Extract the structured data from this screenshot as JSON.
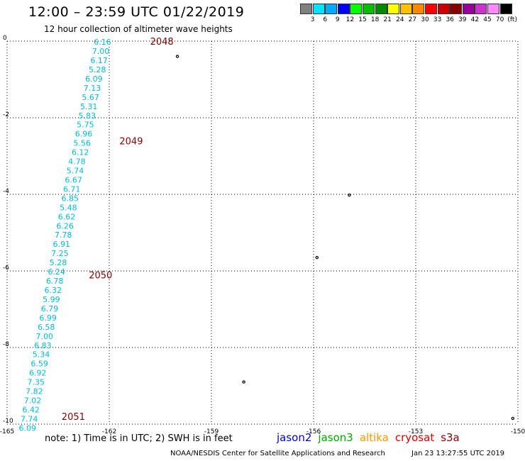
{
  "header": {
    "title": "12:00 – 23:59 UTC 01/22/2019",
    "subtitle": "12 hour collection of altimeter wave heights"
  },
  "legend_scale": {
    "colors": [
      "#808080",
      "#00e5ff",
      "#00aaff",
      "#0000ff",
      "#00ff00",
      "#00c000",
      "#008800",
      "#ffff00",
      "#ffc000",
      "#ff8800",
      "#ff0000",
      "#cc0000",
      "#880000",
      "#990099",
      "#cc33cc",
      "#ff88ff",
      "#000000"
    ],
    "labels": [
      "3",
      "6",
      "9",
      "12",
      "15",
      "18",
      "21",
      "24",
      "27",
      "30",
      "33",
      "36",
      "39",
      "42",
      "45",
      "70",
      "(ft)"
    ]
  },
  "map": {
    "lon_ticks": [
      "-165",
      "-162",
      "-159",
      "-156",
      "-153",
      "-150"
    ],
    "lat_ticks": [
      "0",
      "-2",
      "-4",
      "-6",
      "-8",
      "-10"
    ],
    "lon_range": [
      -165,
      -150
    ],
    "lat_range": [
      -10,
      0
    ],
    "grid": "dotted",
    "track_color": "#00bbdd",
    "time_label_color": "#880000",
    "wave_heights": [
      {
        "lat": -0.02,
        "lon": -162.2,
        "text": "6.16"
      },
      {
        "lat": -0.26,
        "lon": -162.25,
        "text": "7.00"
      },
      {
        "lat": -0.5,
        "lon": -162.3,
        "text": "6.17"
      },
      {
        "lat": -0.74,
        "lon": -162.35,
        "text": "5.28"
      },
      {
        "lat": -0.98,
        "lon": -162.45,
        "text": "6.09"
      },
      {
        "lat": -1.22,
        "lon": -162.5,
        "text": "7.13"
      },
      {
        "lat": -1.46,
        "lon": -162.55,
        "text": "5.67"
      },
      {
        "lat": -1.7,
        "lon": -162.6,
        "text": "5.31"
      },
      {
        "lat": -1.94,
        "lon": -162.65,
        "text": "5.83"
      },
      {
        "lat": -2.18,
        "lon": -162.7,
        "text": "5.75"
      },
      {
        "lat": -2.42,
        "lon": -162.75,
        "text": "6.96"
      },
      {
        "lat": -2.66,
        "lon": -162.8,
        "text": "5.56"
      },
      {
        "lat": -2.9,
        "lon": -162.85,
        "text": "6.12"
      },
      {
        "lat": -3.14,
        "lon": -162.95,
        "text": "4.78"
      },
      {
        "lat": -3.38,
        "lon": -163.0,
        "text": "5.74"
      },
      {
        "lat": -3.62,
        "lon": -163.05,
        "text": "6.67"
      },
      {
        "lat": -3.86,
        "lon": -163.1,
        "text": "6.71"
      },
      {
        "lat": -4.1,
        "lon": -163.15,
        "text": "6.85"
      },
      {
        "lat": -4.34,
        "lon": -163.2,
        "text": "5.48"
      },
      {
        "lat": -4.58,
        "lon": -163.25,
        "text": "6.62"
      },
      {
        "lat": -4.82,
        "lon": -163.3,
        "text": "6.26"
      },
      {
        "lat": -5.06,
        "lon": -163.35,
        "text": "7.78"
      },
      {
        "lat": -5.3,
        "lon": -163.4,
        "text": "6.91"
      },
      {
        "lat": -5.54,
        "lon": -163.45,
        "text": "7.25"
      },
      {
        "lat": -5.78,
        "lon": -163.5,
        "text": "5.28"
      },
      {
        "lat": -6.02,
        "lon": -163.55,
        "text": "6.24"
      },
      {
        "lat": -6.26,
        "lon": -163.6,
        "text": "6.78"
      },
      {
        "lat": -6.5,
        "lon": -163.65,
        "text": "6.32"
      },
      {
        "lat": -6.74,
        "lon": -163.7,
        "text": "5.99"
      },
      {
        "lat": -6.98,
        "lon": -163.75,
        "text": "6.79"
      },
      {
        "lat": -7.22,
        "lon": -163.8,
        "text": "6.99"
      },
      {
        "lat": -7.46,
        "lon": -163.85,
        "text": "6.58"
      },
      {
        "lat": -7.7,
        "lon": -163.9,
        "text": "7.00"
      },
      {
        "lat": -7.94,
        "lon": -163.95,
        "text": "6.83"
      },
      {
        "lat": -8.18,
        "lon": -164.0,
        "text": "5.34"
      },
      {
        "lat": -8.42,
        "lon": -164.05,
        "text": "6.59"
      },
      {
        "lat": -8.66,
        "lon": -164.1,
        "text": "6.92"
      },
      {
        "lat": -8.9,
        "lon": -164.15,
        "text": "7.35"
      },
      {
        "lat": -9.14,
        "lon": -164.2,
        "text": "7.82"
      },
      {
        "lat": -9.38,
        "lon": -164.25,
        "text": "7.02"
      },
      {
        "lat": -9.62,
        "lon": -164.3,
        "text": "6.42"
      },
      {
        "lat": -9.86,
        "lon": -164.35,
        "text": "7.74"
      },
      {
        "lat": -10.1,
        "lon": -164.4,
        "text": "6.09"
      }
    ],
    "time_labels": [
      {
        "lat": 0.0,
        "lon": -160.8,
        "text": "2048"
      },
      {
        "lat": -2.6,
        "lon": -161.7,
        "text": "2049"
      },
      {
        "lat": -6.1,
        "lon": -162.6,
        "text": "2050"
      },
      {
        "lat": -9.8,
        "lon": -163.4,
        "text": "2051"
      }
    ],
    "islands": [
      {
        "lat": -0.4,
        "lon": -160.0
      },
      {
        "lat": -4.02,
        "lon": -154.95
      },
      {
        "lat": -5.65,
        "lon": -155.9
      },
      {
        "lat": -8.9,
        "lon": -158.05
      },
      {
        "lat": -9.85,
        "lon": -150.15
      }
    ]
  },
  "footer": {
    "note": "note: 1) Time is in UTC; 2) SWH is in feet",
    "satellites": [
      {
        "name": "jason2",
        "color": "#0000dd"
      },
      {
        "name": "jason3",
        "color": "#00aa00"
      },
      {
        "name": "altika",
        "color": "#ff9900"
      },
      {
        "name": "cryosat",
        "color": "#dd0000"
      },
      {
        "name": "s3a",
        "color": "#880000"
      }
    ],
    "credit": "NOAA/NESDIS Center for Satellite Applications and Research",
    "timestamp": "Jan 23 13:27:55 UTC 2019"
  }
}
